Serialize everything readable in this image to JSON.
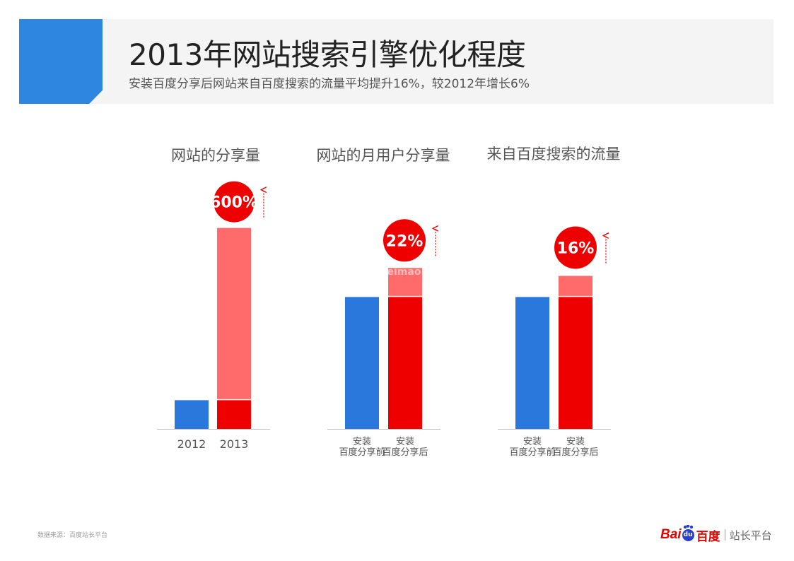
{
  "header": {
    "title": "2013年网站搜索引擎优化程度",
    "subtitle": "安装百度分享后网站来自百度搜索的流量平均提升16%，较2012年增长6%"
  },
  "colors": {
    "blue": "#2a78db",
    "red": "#ee0000",
    "light_red": "#ff6b6b",
    "accent": "#2f86e0",
    "axis": "#bbbbbb"
  },
  "chart_data": [
    {
      "type": "bar",
      "title": "网站的分享量",
      "categories": [
        "2012",
        "2013"
      ],
      "values": [
        1,
        7
      ],
      "base_values": [
        1,
        1
      ],
      "increase_label": "600%",
      "ylim": [
        0,
        8
      ]
    },
    {
      "type": "bar",
      "title": "网站的月用户分享量",
      "categories": [
        [
          "安装",
          "百度分享前"
        ],
        [
          "安装",
          "百度分享后"
        ]
      ],
      "values": [
        100,
        122
      ],
      "base_values": [
        100,
        100
      ],
      "increase_label": "22%",
      "ylim": [
        0,
        150
      ]
    },
    {
      "type": "bar",
      "title": "来自百度搜索的流量",
      "categories": [
        [
          "安装",
          "百度分享前"
        ],
        [
          "安装",
          "百度分享后"
        ]
      ],
      "values": [
        100,
        116
      ],
      "base_values": [
        100,
        100
      ],
      "increase_label": "16%",
      "ylim": [
        0,
        150
      ]
    }
  ],
  "footer": {
    "source": "数据来源：百度站长平台",
    "brand_bai": "Bai",
    "brand_du": "du",
    "brand_baidu_cn": "百度",
    "brand_platform": "站长平台"
  },
  "watermark": "www.weimao.wiki"
}
